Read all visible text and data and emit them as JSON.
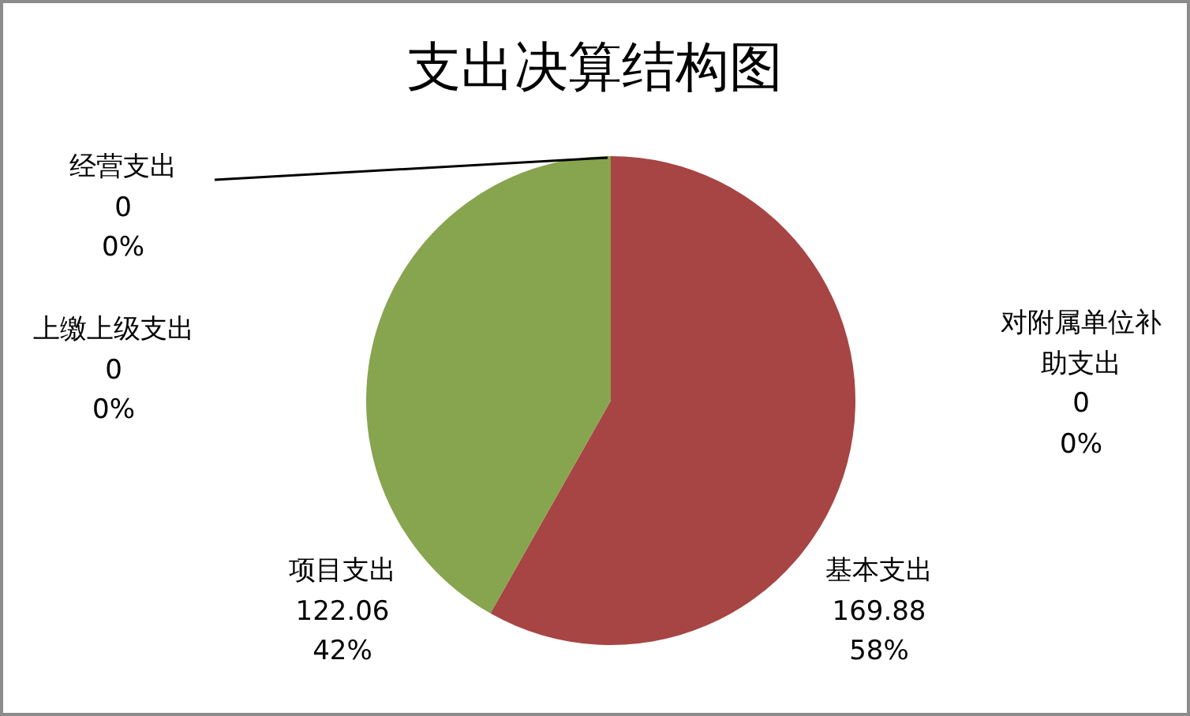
{
  "chart_data": {
    "type": "pie",
    "title": "支出决算结构图",
    "categories": [
      "基本支出",
      "项目支出",
      "上缴上级支出",
      "经营支出",
      "对附属单位补助支出"
    ],
    "values": [
      169.88,
      122.06,
      0,
      0,
      0
    ],
    "colors": [
      "#a64543",
      "#87a44f",
      "#8064a2",
      "#4f81bd",
      "#4bacc6"
    ],
    "value_labels": [
      "169.88\n58%",
      "122.06\n42%",
      "0\n0%",
      "0\n0%",
      "0\n0%"
    ]
  }
}
